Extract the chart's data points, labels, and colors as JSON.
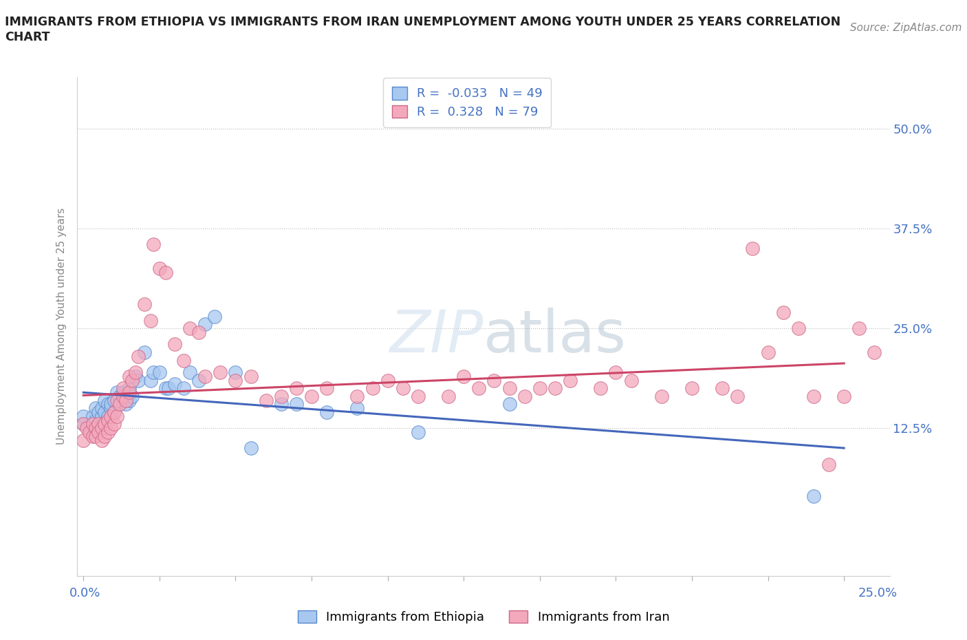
{
  "title_line1": "IMMIGRANTS FROM ETHIOPIA VS IMMIGRANTS FROM IRAN UNEMPLOYMENT AMONG YOUTH UNDER 25 YEARS CORRELATION",
  "title_line2": "CHART",
  "source": "Source: ZipAtlas.com",
  "ylabel": "Unemployment Among Youth under 25 years",
  "ytick_labels": [
    "12.5%",
    "25.0%",
    "37.5%",
    "50.0%"
  ],
  "ytick_values": [
    0.125,
    0.25,
    0.375,
    0.5
  ],
  "xlim": [
    -0.002,
    0.265
  ],
  "ylim": [
    -0.06,
    0.565
  ],
  "watermark": "ZIPatlas",
  "ethiopia_R": -0.033,
  "ethiopia_N": 49,
  "iran_R": 0.328,
  "iran_N": 79,
  "ethiopia_color": "#A8C8F0",
  "iran_color": "#F4A8BC",
  "ethiopia_edge_color": "#5588CC",
  "iran_edge_color": "#CC6688",
  "ethiopia_line_color": "#4466BB",
  "iran_line_color": "#CC4466",
  "ethiopia_x": [
    0.0,
    0.0,
    0.002,
    0.003,
    0.004,
    0.004,
    0.005,
    0.005,
    0.006,
    0.006,
    0.007,
    0.007,
    0.008,
    0.008,
    0.009,
    0.009,
    0.01,
    0.01,
    0.011,
    0.012,
    0.012,
    0.013,
    0.014,
    0.015,
    0.015,
    0.016,
    0.017,
    0.018,
    0.02,
    0.022,
    0.023,
    0.025,
    0.027,
    0.028,
    0.03,
    0.033,
    0.035,
    0.038,
    0.04,
    0.043,
    0.05,
    0.055,
    0.065,
    0.07,
    0.08,
    0.09,
    0.11,
    0.14,
    0.24
  ],
  "ethiopia_y": [
    0.13,
    0.14,
    0.125,
    0.14,
    0.135,
    0.15,
    0.13,
    0.145,
    0.14,
    0.15,
    0.145,
    0.16,
    0.14,
    0.155,
    0.15,
    0.155,
    0.145,
    0.16,
    0.17,
    0.155,
    0.165,
    0.17,
    0.155,
    0.16,
    0.175,
    0.165,
    0.19,
    0.185,
    0.22,
    0.185,
    0.195,
    0.195,
    0.175,
    0.175,
    0.18,
    0.175,
    0.195,
    0.185,
    0.255,
    0.265,
    0.195,
    0.1,
    0.155,
    0.155,
    0.145,
    0.15,
    0.12,
    0.155,
    0.04
  ],
  "iran_x": [
    0.0,
    0.0,
    0.001,
    0.002,
    0.003,
    0.003,
    0.004,
    0.004,
    0.005,
    0.005,
    0.006,
    0.006,
    0.007,
    0.007,
    0.008,
    0.008,
    0.009,
    0.009,
    0.01,
    0.01,
    0.011,
    0.011,
    0.012,
    0.013,
    0.013,
    0.014,
    0.015,
    0.015,
    0.016,
    0.017,
    0.018,
    0.02,
    0.022,
    0.023,
    0.025,
    0.027,
    0.03,
    0.033,
    0.035,
    0.038,
    0.04,
    0.045,
    0.05,
    0.055,
    0.06,
    0.065,
    0.07,
    0.075,
    0.08,
    0.09,
    0.095,
    0.1,
    0.105,
    0.11,
    0.12,
    0.125,
    0.13,
    0.135,
    0.14,
    0.145,
    0.15,
    0.155,
    0.16,
    0.17,
    0.175,
    0.18,
    0.19,
    0.2,
    0.21,
    0.215,
    0.22,
    0.225,
    0.23,
    0.235,
    0.24,
    0.245,
    0.25,
    0.255,
    0.26
  ],
  "iran_y": [
    0.13,
    0.11,
    0.125,
    0.12,
    0.115,
    0.13,
    0.125,
    0.115,
    0.13,
    0.12,
    0.125,
    0.11,
    0.115,
    0.13,
    0.12,
    0.135,
    0.125,
    0.14,
    0.13,
    0.145,
    0.14,
    0.16,
    0.155,
    0.165,
    0.175,
    0.16,
    0.17,
    0.19,
    0.185,
    0.195,
    0.215,
    0.28,
    0.26,
    0.355,
    0.325,
    0.32,
    0.23,
    0.21,
    0.25,
    0.245,
    0.19,
    0.195,
    0.185,
    0.19,
    0.16,
    0.165,
    0.175,
    0.165,
    0.175,
    0.165,
    0.175,
    0.185,
    0.175,
    0.165,
    0.165,
    0.19,
    0.175,
    0.185,
    0.175,
    0.165,
    0.175,
    0.175,
    0.185,
    0.175,
    0.195,
    0.185,
    0.165,
    0.175,
    0.175,
    0.165,
    0.35,
    0.22,
    0.27,
    0.25,
    0.165,
    0.08,
    0.165,
    0.25,
    0.22
  ]
}
